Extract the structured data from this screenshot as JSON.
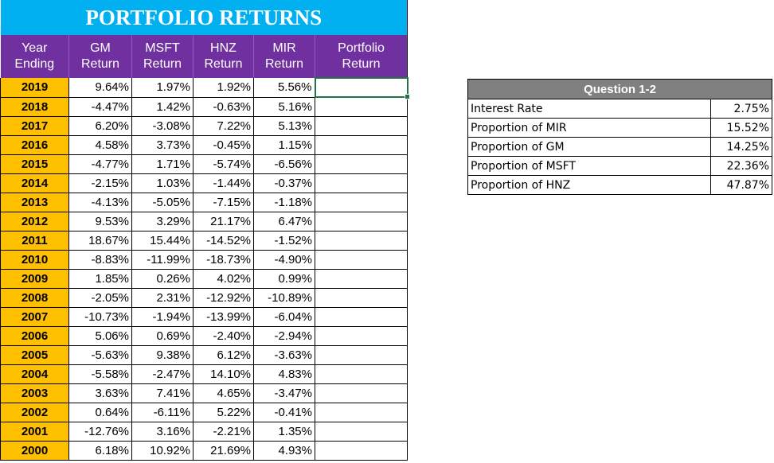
{
  "title": "PORTFOLIO RETURNS",
  "headers": [
    "Year Ending",
    "GM Return",
    "MSFT Return",
    "HNZ Return",
    "MIR Return",
    "Portfolio Return"
  ],
  "rows": [
    {
      "year": "2019",
      "gm": "9.64%",
      "msft": "1.97%",
      "hnz": "1.92%",
      "mir": "5.56%",
      "portfolio": ""
    },
    {
      "year": "2018",
      "gm": "-4.47%",
      "msft": "1.42%",
      "hnz": "-0.63%",
      "mir": "5.16%",
      "portfolio": ""
    },
    {
      "year": "2017",
      "gm": "6.20%",
      "msft": "-3.08%",
      "hnz": "7.22%",
      "mir": "5.13%",
      "portfolio": ""
    },
    {
      "year": "2016",
      "gm": "4.58%",
      "msft": "3.73%",
      "hnz": "-0.45%",
      "mir": "1.15%",
      "portfolio": ""
    },
    {
      "year": "2015",
      "gm": "-4.77%",
      "msft": "1.71%",
      "hnz": "-5.74%",
      "mir": "-6.56%",
      "portfolio": ""
    },
    {
      "year": "2014",
      "gm": "-2.15%",
      "msft": "1.03%",
      "hnz": "-1.44%",
      "mir": "-0.37%",
      "portfolio": ""
    },
    {
      "year": "2013",
      "gm": "-4.13%",
      "msft": "-5.05%",
      "hnz": "-7.15%",
      "mir": "-1.18%",
      "portfolio": ""
    },
    {
      "year": "2012",
      "gm": "9.53%",
      "msft": "3.29%",
      "hnz": "21.17%",
      "mir": "6.47%",
      "portfolio": ""
    },
    {
      "year": "2011",
      "gm": "18.67%",
      "msft": "15.44%",
      "hnz": "-14.52%",
      "mir": "-1.52%",
      "portfolio": ""
    },
    {
      "year": "2010",
      "gm": "-8.83%",
      "msft": "-11.99%",
      "hnz": "-18.73%",
      "mir": "-4.90%",
      "portfolio": ""
    },
    {
      "year": "2009",
      "gm": "1.85%",
      "msft": "0.26%",
      "hnz": "4.02%",
      "mir": "0.99%",
      "portfolio": ""
    },
    {
      "year": "2008",
      "gm": "-2.05%",
      "msft": "2.31%",
      "hnz": "-12.92%",
      "mir": "-10.89%",
      "portfolio": ""
    },
    {
      "year": "2007",
      "gm": "-10.73%",
      "msft": "-1.94%",
      "hnz": "-13.99%",
      "mir": "-6.04%",
      "portfolio": ""
    },
    {
      "year": "2006",
      "gm": "5.06%",
      "msft": "0.69%",
      "hnz": "-2.40%",
      "mir": "-2.94%",
      "portfolio": ""
    },
    {
      "year": "2005",
      "gm": "-5.63%",
      "msft": "9.38%",
      "hnz": "6.12%",
      "mir": "-3.63%",
      "portfolio": ""
    },
    {
      "year": "2004",
      "gm": "-5.58%",
      "msft": "-2.47%",
      "hnz": "14.10%",
      "mir": "4.83%",
      "portfolio": ""
    },
    {
      "year": "2003",
      "gm": "3.63%",
      "msft": "7.41%",
      "hnz": "4.65%",
      "mir": "-3.47%",
      "portfolio": ""
    },
    {
      "year": "2002",
      "gm": "0.64%",
      "msft": "-6.11%",
      "hnz": "5.22%",
      "mir": "-0.41%",
      "portfolio": ""
    },
    {
      "year": "2001",
      "gm": "-12.76%",
      "msft": "3.16%",
      "hnz": "-2.21%",
      "mir": "1.35%",
      "portfolio": ""
    },
    {
      "year": "2000",
      "gm": "6.18%",
      "msft": "10.92%",
      "hnz": "21.69%",
      "mir": "4.93%",
      "portfolio": ""
    }
  ],
  "question": {
    "title": "Question 1-2",
    "items": [
      {
        "label": "Interest Rate",
        "value": "2.75%"
      },
      {
        "label": "Proportion of MIR",
        "value": "15.52%"
      },
      {
        "label": "Proportion of GM",
        "value": "14.25%"
      },
      {
        "label": "Proportion of MSFT",
        "value": "22.36%"
      },
      {
        "label": "Proportion of HNZ",
        "value": "47.87%"
      }
    ]
  },
  "colors": {
    "title_bg": "#00b0f0",
    "header_bg": "#7030a0",
    "year_bg": "#ffc000",
    "question_header_bg": "#808080",
    "selection": "#217346"
  }
}
